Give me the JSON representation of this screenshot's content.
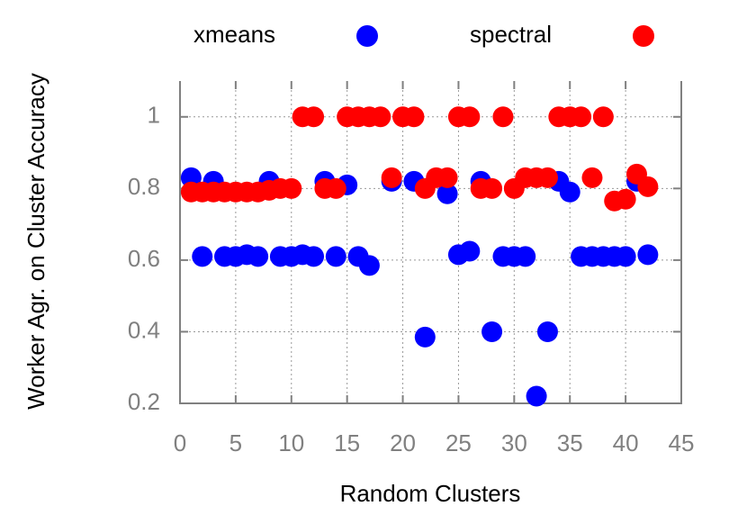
{
  "chart_data": {
    "type": "scatter",
    "xlabel": "Random Clusters",
    "ylabel": "Worker Agr. on Cluster Accuracy",
    "xlim": [
      0,
      45
    ],
    "xticks": [
      0,
      5,
      10,
      15,
      20,
      25,
      30,
      35,
      40,
      45
    ],
    "ylim": [
      0.2,
      1.1
    ],
    "yticks": [
      0.2,
      0.4,
      0.6,
      0.8,
      1
    ],
    "grid": true,
    "legend": "top",
    "series": [
      {
        "name": "xmeans",
        "color": "#0000ff",
        "x": [
          1,
          2,
          3,
          4,
          5,
          6,
          7,
          8,
          9,
          10,
          11,
          12,
          13,
          14,
          15,
          16,
          17,
          19,
          21,
          22,
          24,
          25,
          26,
          27,
          28,
          29,
          30,
          31,
          32,
          33,
          34,
          35,
          36,
          37,
          38,
          39,
          40,
          41,
          42
        ],
        "values": [
          0.83,
          0.61,
          0.82,
          0.61,
          0.61,
          0.615,
          0.61,
          0.82,
          0.61,
          0.61,
          0.615,
          0.61,
          0.82,
          0.61,
          0.81,
          0.61,
          0.585,
          0.82,
          0.82,
          0.385,
          0.785,
          0.615,
          0.625,
          0.82,
          0.4,
          0.61,
          0.61,
          0.61,
          0.22,
          0.4,
          0.82,
          0.79,
          0.61,
          0.61,
          0.61,
          0.61,
          0.61,
          0.82,
          0.615
        ]
      },
      {
        "name": "spectral",
        "color": "#ff0000",
        "x": [
          1,
          2,
          3,
          4,
          5,
          6,
          7,
          8,
          9,
          10,
          11,
          12,
          13,
          14,
          15,
          16,
          17,
          18,
          19,
          20,
          21,
          22,
          23,
          24,
          25,
          26,
          27,
          28,
          29,
          30,
          31,
          32,
          33,
          34,
          35,
          36,
          37,
          38,
          39,
          40,
          41,
          42
        ],
        "values": [
          0.79,
          0.79,
          0.79,
          0.79,
          0.79,
          0.79,
          0.79,
          0.795,
          0.8,
          0.8,
          1,
          1,
          0.8,
          0.8,
          1,
          1,
          1,
          1,
          0.83,
          1,
          1,
          0.8,
          0.83,
          0.83,
          1,
          1,
          0.8,
          0.8,
          1,
          0.8,
          0.83,
          0.83,
          0.83,
          1,
          1,
          1,
          0.83,
          1,
          0.765,
          0.77,
          0.84,
          0.805
        ]
      }
    ]
  }
}
